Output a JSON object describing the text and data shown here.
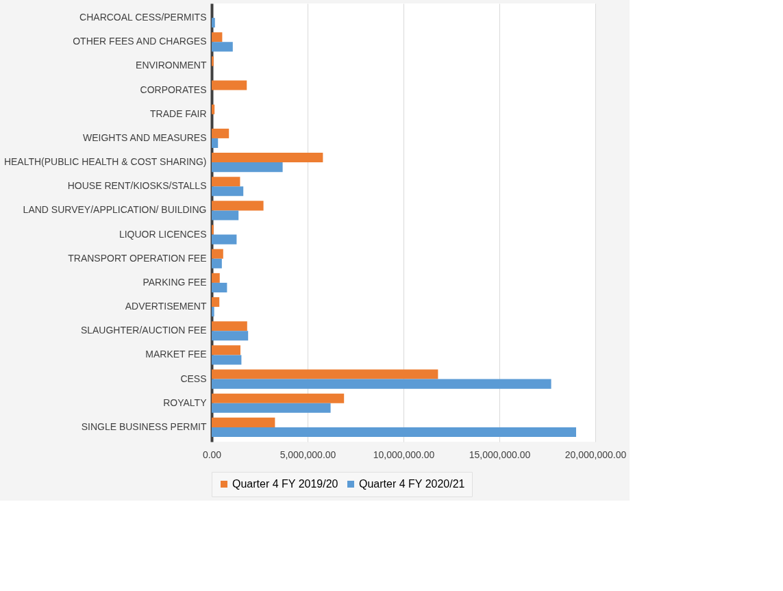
{
  "chart_data": {
    "type": "bar",
    "orientation": "horizontal",
    "categories": [
      "CHARCOAL CESS/PERMITS",
      "OTHER FEES AND CHARGES",
      "ENVIRONMENT",
      "CORPORATES",
      "TRADE FAIR",
      "WEIGHTS AND MEASURES",
      "HEALTH(PUBLIC HEALTH & COST SHARING)",
      "HOUSE RENT/KIOSKS/STALLS",
      "LAND SURVEY/APPLICATION/ BUILDING",
      "LIQUOR LICENCES",
      "TRANSPORT OPERATION FEE",
      "PARKING FEE",
      "ADVERTISEMENT",
      "SLAUGHTER/AUCTION FEE",
      "MARKET FEE",
      "CESS",
      "ROYALTY",
      "SINGLE BUSINESS PERMIT"
    ],
    "series": [
      {
        "name": "Quarter 4 FY 2019/20",
        "color": "#ed7d31",
        "values": [
          0,
          550000,
          100000,
          1830000,
          150000,
          900000,
          5800000,
          1480000,
          2700000,
          100000,
          600000,
          420000,
          400000,
          1850000,
          1500000,
          11800000,
          6900000,
          3300000
        ]
      },
      {
        "name": "Quarter 4 FY 2020/21",
        "color": "#5b9bd5",
        "values": [
          170000,
          1100000,
          0,
          0,
          0,
          330000,
          3700000,
          1650000,
          1400000,
          1300000,
          530000,
          800000,
          130000,
          1900000,
          1550000,
          17700000,
          6200000,
          19000000
        ]
      }
    ],
    "xlim": [
      0,
      20000000
    ],
    "xticks": [
      {
        "value": 0,
        "label": "0.00"
      },
      {
        "value": 5000000,
        "label": "5,000,000.00"
      },
      {
        "value": 10000000,
        "label": "10,000,000.00"
      },
      {
        "value": 15000000,
        "label": "15,000,000.00"
      },
      {
        "value": 20000000,
        "label": "20,000,000.00"
      }
    ],
    "grid": "x",
    "legend": "bottom"
  }
}
